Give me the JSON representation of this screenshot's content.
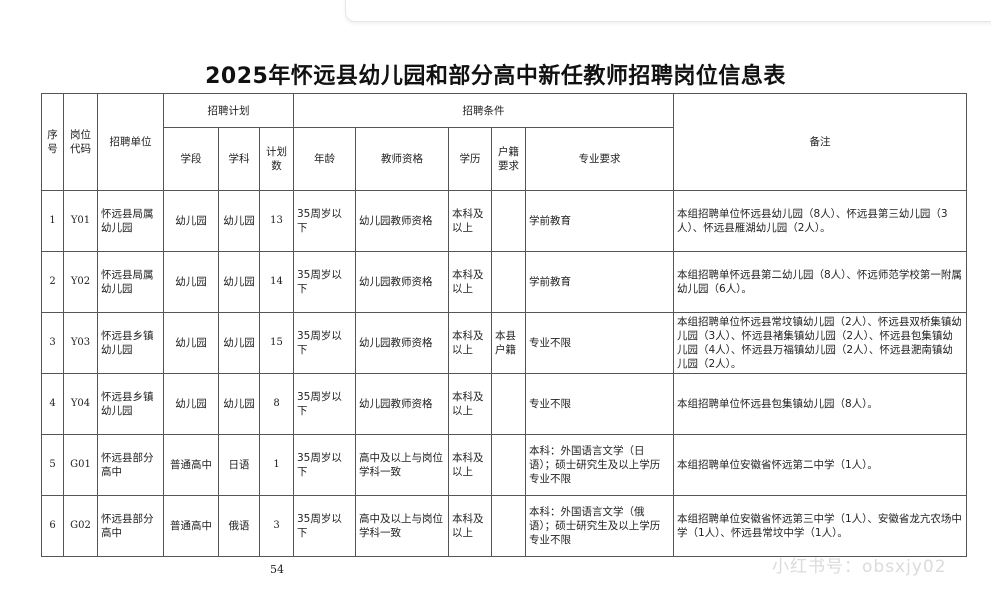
{
  "title": "2025年怀远县幼儿园和部分高中新任教师招聘岗位信息表",
  "headers": {
    "seq": "序号",
    "code": "岗位代码",
    "unit": "招聘单位",
    "plan_group": "招聘计划",
    "level": "学段",
    "subject": "学科",
    "count": "计划数",
    "cond_group": "招聘条件",
    "age": "年龄",
    "qualification": "教师资格",
    "education": "学历",
    "hukou": "户籍要求",
    "major": "专业要求",
    "remarks": "备注"
  },
  "rows": [
    {
      "seq": "1",
      "code": "Y01",
      "unit": "怀远县局属幼儿园",
      "level": "幼儿园",
      "subject": "幼儿园",
      "count": "13",
      "age": "35周岁以下",
      "qualification": "幼儿园教师资格",
      "education": "本科及以上",
      "hukou": "",
      "major": "学前教育",
      "remarks": "本组招聘单位怀远县幼儿园（8人）、怀远县第三幼儿园（3人）、怀远县雁湖幼儿园（2人）。"
    },
    {
      "seq": "2",
      "code": "Y02",
      "unit": "怀远县局属幼儿园",
      "level": "幼儿园",
      "subject": "幼儿园",
      "count": "14",
      "age": "35周岁以下",
      "qualification": "幼儿园教师资格",
      "education": "本科及以上",
      "hukou": "",
      "major": "学前教育",
      "remarks": "本组招聘单怀远县第二幼儿园（8人）、怀远师范学校第一附属幼儿园（6人）。"
    },
    {
      "seq": "3",
      "code": "Y03",
      "unit": "怀远县乡镇幼儿园",
      "level": "幼儿园",
      "subject": "幼儿园",
      "count": "15",
      "age": "35周岁以下",
      "qualification": "幼儿园教师资格",
      "education": "本科及以上",
      "hukou": "本县户籍",
      "major": "专业不限",
      "remarks": "本组招聘单位怀远县常坟镇幼儿园（2人）、怀远县双桥集镇幼儿园（3人）、怀远县褚集镇幼儿园（2人）、怀远县包集镇幼儿园（4人）、怀远县万福镇幼儿园（2人）、怀远县淝南镇幼儿园（2人）。"
    },
    {
      "seq": "4",
      "code": "Y04",
      "unit": "怀远县乡镇幼儿园",
      "level": "幼儿园",
      "subject": "幼儿园",
      "count": "8",
      "age": "35周岁以下",
      "qualification": "幼儿园教师资格",
      "education": "本科及以上",
      "hukou": "",
      "major": "专业不限",
      "remarks": "本组招聘单位怀远县包集镇幼儿园（8人）。"
    },
    {
      "seq": "5",
      "code": "G01",
      "unit": "怀远县部分高中",
      "level": "普通高中",
      "subject": "日语",
      "count": "1",
      "age": "35周岁以下",
      "qualification": "高中及以上与岗位学科一致",
      "education": "本科及以上",
      "hukou": "",
      "major": "本科：外国语言文学（日语）；硕士研究生及以上学历专业不限",
      "remarks": "本组招聘单位安徽省怀远第二中学（1人）。"
    },
    {
      "seq": "6",
      "code": "G02",
      "unit": "怀远县部分高中",
      "level": "普通高中",
      "subject": "俄语",
      "count": "3",
      "age": "35周岁以下",
      "qualification": "高中及以上与岗位学科一致",
      "education": "本科及以上",
      "hukou": "",
      "major": "本科：外国语言文学（俄语）；硕士研究生及以上学历专业不限",
      "remarks": "本组招聘单位安徽省怀远第三中学（1人）、安徽省龙亢农场中学（1人）、怀远县常坟中学（1人）。"
    }
  ],
  "page_number": "54",
  "watermark": "小红书号：obsxjy02"
}
